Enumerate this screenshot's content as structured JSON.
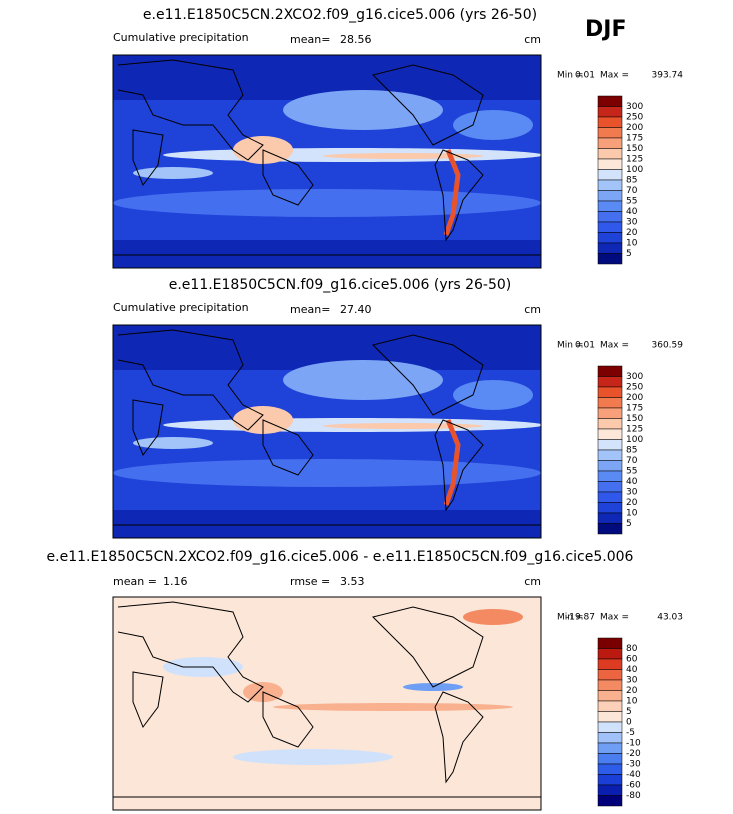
{
  "season": "DJF",
  "panels": [
    {
      "title": "e.e11.E1850C5CN.2XCO2.f09_g16.cice5.006 (yrs 26-50)",
      "label": "Cumulative precipitation",
      "stats": [
        {
          "name": "mean=",
          "value": "28.56"
        }
      ],
      "units": "cm",
      "min_label": "Min =",
      "min": "0.01",
      "max_label": "Max =",
      "max": "393.74",
      "levels": [
        300,
        250,
        200,
        175,
        150,
        125,
        100,
        85,
        70,
        55,
        40,
        30,
        20,
        10,
        5
      ],
      "colors": [
        "#7c0000",
        "#c6261a",
        "#e8532c",
        "#f27a4f",
        "#f8a07a",
        "#fbc9ab",
        "#fde7d8",
        "#d2e3fb",
        "#a3c4f8",
        "#7ca5f6",
        "#5a8af3",
        "#4470f0",
        "#3058ea",
        "#1f42d9",
        "#0f27b5",
        "#000c7d"
      ]
    },
    {
      "title": "e.e11.E1850C5CN.f09_g16.cice5.006 (yrs 26-50)",
      "label": "Cumulative precipitation",
      "stats": [
        {
          "name": "mean=",
          "value": "27.40"
        }
      ],
      "units": "cm",
      "min_label": "Min =",
      "min": "0.01",
      "max_label": "Max =",
      "max": "360.59",
      "levels": [
        300,
        250,
        200,
        175,
        150,
        125,
        100,
        85,
        70,
        55,
        40,
        30,
        20,
        10,
        5
      ],
      "colors": [
        "#7c0000",
        "#c6261a",
        "#e8532c",
        "#f27a4f",
        "#f8a07a",
        "#fbc9ab",
        "#fde7d8",
        "#d2e3fb",
        "#a3c4f8",
        "#7ca5f6",
        "#5a8af3",
        "#4470f0",
        "#3058ea",
        "#1f42d9",
        "#0f27b5",
        "#000c7d"
      ]
    },
    {
      "title": "e.e11.E1850C5CN.2XCO2.f09_g16.cice5.006 - e.e11.E1850C5CN.f09_g16.cice5.006",
      "stats": [
        {
          "name": "mean =",
          "value": "1.16"
        },
        {
          "name": "rmse =",
          "value": "3.53"
        }
      ],
      "units": "cm",
      "min_label": "Min =",
      "min": "-19.87",
      "max_label": "Max =",
      "max": "43.03",
      "levels": [
        80,
        60,
        40,
        30,
        20,
        10,
        5,
        0,
        -5,
        -10,
        -20,
        -30,
        -40,
        -60,
        -80
      ],
      "colors": [
        "#7a0000",
        "#bb1a10",
        "#de3c22",
        "#ec6440",
        "#f48a62",
        "#f9b08e",
        "#fcd0b8",
        "#fbe6d8",
        "#d0e2fb",
        "#a0c2f8",
        "#6f9ff5",
        "#4a7ef0",
        "#2d5ce8",
        "#1a3fd6",
        "#0a1fb0",
        "#00007a"
      ]
    }
  ]
}
